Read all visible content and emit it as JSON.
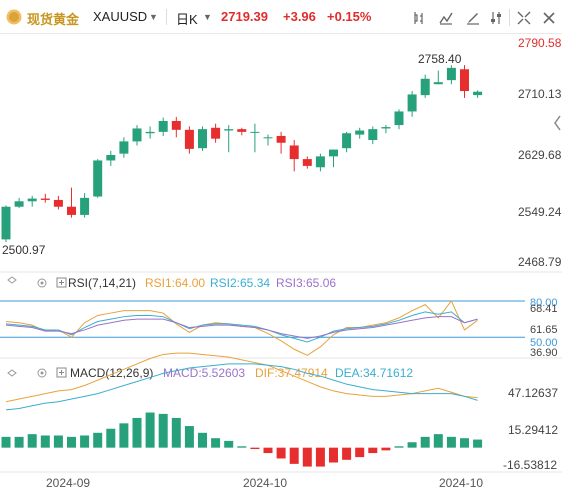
{
  "toolbar": {
    "name": "现货黄金",
    "symbol": "XAUUSD",
    "timeframe": "日K",
    "price": "2719.39",
    "change": "+3.96",
    "change_pct": "+0.15%",
    "icons": [
      "chart-style-icon",
      "indicator-icon",
      "draw-icon",
      "settings-icon",
      "fullscreen-icon",
      "close-icon"
    ]
  },
  "colors": {
    "up": "#26a17b",
    "down": "#e62e2e",
    "accent": "#c8961e",
    "ref": "#3d9ad8"
  },
  "price_axis": [
    "2790.58",
    "2710.13",
    "2629.68",
    "2549.24",
    "2468.79"
  ],
  "annotations": {
    "high": "2758.40",
    "low": "2500.97"
  },
  "rsi": {
    "title": "RSI(7,14,21)",
    "rsi1": "RSI1:64.00",
    "rsi2": "RSI2:65.34",
    "rsi3": "RSI3:65.06",
    "axis": [
      "80.00",
      "68.41",
      "61.65",
      "50.00",
      "36.90"
    ]
  },
  "macd": {
    "title": "MACD(12,26,9)",
    "macd": "MACD:5.52603",
    "dif": "DIF:37.47914",
    "dea": "DEA:34.71612",
    "axis": [
      "47.12637",
      "15.29412",
      "-16.53812"
    ]
  },
  "dates": [
    "2024-09",
    "2024-10",
    "2024-10"
  ],
  "chart_data": {
    "type": "candlestick",
    "candles": [
      {
        "o": 2502,
        "h": 2552,
        "l": 2498,
        "c": 2550
      },
      {
        "o": 2550,
        "h": 2563,
        "l": 2548,
        "c": 2558
      },
      {
        "o": 2558,
        "h": 2566,
        "l": 2550,
        "c": 2562
      },
      {
        "o": 2562,
        "h": 2569,
        "l": 2556,
        "c": 2560
      },
      {
        "o": 2560,
        "h": 2566,
        "l": 2546,
        "c": 2550
      },
      {
        "o": 2550,
        "h": 2578,
        "l": 2534,
        "c": 2538
      },
      {
        "o": 2538,
        "h": 2570,
        "l": 2534,
        "c": 2563
      },
      {
        "o": 2565,
        "h": 2620,
        "l": 2563,
        "c": 2618
      },
      {
        "o": 2618,
        "h": 2632,
        "l": 2610,
        "c": 2626
      },
      {
        "o": 2628,
        "h": 2652,
        "l": 2622,
        "c": 2646
      },
      {
        "o": 2646,
        "h": 2670,
        "l": 2640,
        "c": 2665
      },
      {
        "o": 2658,
        "h": 2668,
        "l": 2650,
        "c": 2660
      },
      {
        "o": 2660,
        "h": 2681,
        "l": 2654,
        "c": 2676
      },
      {
        "o": 2676,
        "h": 2682,
        "l": 2652,
        "c": 2663
      },
      {
        "o": 2663,
        "h": 2668,
        "l": 2628,
        "c": 2635
      },
      {
        "o": 2636,
        "h": 2668,
        "l": 2632,
        "c": 2664
      },
      {
        "o": 2666,
        "h": 2672,
        "l": 2644,
        "c": 2650
      },
      {
        "o": 2662,
        "h": 2670,
        "l": 2630,
        "c": 2664
      },
      {
        "o": 2664,
        "h": 2666,
        "l": 2655,
        "c": 2660
      },
      {
        "o": 2660,
        "h": 2672,
        "l": 2630,
        "c": 2660
      },
      {
        "o": 2652,
        "h": 2656,
        "l": 2640,
        "c": 2652
      },
      {
        "o": 2654,
        "h": 2660,
        "l": 2628,
        "c": 2644
      },
      {
        "o": 2640,
        "h": 2648,
        "l": 2602,
        "c": 2620
      },
      {
        "o": 2620,
        "h": 2624,
        "l": 2606,
        "c": 2610
      },
      {
        "o": 2608,
        "h": 2628,
        "l": 2602,
        "c": 2624
      },
      {
        "o": 2624,
        "h": 2632,
        "l": 2608,
        "c": 2634
      },
      {
        "o": 2636,
        "h": 2660,
        "l": 2630,
        "c": 2658
      },
      {
        "o": 2656,
        "h": 2666,
        "l": 2650,
        "c": 2662
      },
      {
        "o": 2648,
        "h": 2668,
        "l": 2642,
        "c": 2664
      },
      {
        "o": 2665,
        "h": 2670,
        "l": 2658,
        "c": 2667
      },
      {
        "o": 2670,
        "h": 2693,
        "l": 2664,
        "c": 2690
      },
      {
        "o": 2690,
        "h": 2720,
        "l": 2682,
        "c": 2715
      },
      {
        "o": 2714,
        "h": 2744,
        "l": 2710,
        "c": 2738
      },
      {
        "o": 2730,
        "h": 2750,
        "l": 2730,
        "c": 2733
      },
      {
        "o": 2736,
        "h": 2758,
        "l": 2730,
        "c": 2754
      },
      {
        "o": 2752,
        "h": 2758,
        "l": 2710,
        "c": 2720
      },
      {
        "o": 2714,
        "h": 2721,
        "l": 2710,
        "c": 2719
      }
    ],
    "rsi_lines": {
      "rsi1": [
        63,
        62,
        60,
        55,
        56,
        50,
        62,
        68,
        70,
        72,
        72,
        72,
        70,
        61,
        54,
        60,
        62,
        61,
        59,
        58,
        53,
        47,
        40,
        35,
        42,
        52,
        58,
        58,
        60,
        62,
        66,
        72,
        77,
        66,
        80,
        56,
        64
      ],
      "rsi2": [
        61,
        60,
        59,
        56,
        56,
        52,
        58,
        63,
        65,
        67,
        68,
        68,
        67,
        62,
        57,
        60,
        61,
        61,
        60,
        59,
        56,
        52,
        49,
        46,
        50,
        55,
        57,
        58,
        59,
        61,
        64,
        68,
        71,
        69,
        71,
        62,
        65
      ],
      "rsi3": [
        60,
        59,
        58,
        55,
        55,
        53,
        56,
        60,
        62,
        64,
        65,
        65,
        65,
        62,
        58,
        59,
        60,
        60,
        59,
        58,
        56,
        53,
        51,
        49,
        51,
        54,
        56,
        57,
        58,
        60,
        62,
        64,
        66,
        67,
        67,
        62,
        65
      ]
    },
    "macd_hist": [
      8,
      8,
      10,
      9,
      9,
      8,
      9,
      11,
      14,
      18,
      22,
      26,
      25,
      22,
      16,
      11,
      7,
      5,
      1,
      -1,
      -4,
      -8,
      -12,
      -14,
      -14,
      -11,
      -9,
      -7,
      -4,
      -2,
      1,
      4,
      8,
      10,
      8,
      7,
      6
    ],
    "dif": [
      34,
      36,
      38,
      40,
      42,
      43,
      46,
      50,
      54,
      58,
      62,
      66,
      69,
      70,
      70,
      69,
      68,
      67,
      65,
      63,
      61,
      57,
      53,
      49,
      45,
      42,
      40,
      39,
      38,
      38,
      39,
      40,
      42,
      44,
      41,
      38,
      37
    ],
    "dea": [
      28,
      29,
      31,
      33,
      34,
      36,
      38,
      40,
      43,
      46,
      49,
      52,
      55,
      57,
      59,
      60,
      61,
      62,
      62,
      62,
      61,
      60,
      58,
      55,
      53,
      50,
      47,
      45,
      43,
      42,
      41,
      40,
      40,
      40,
      40,
      38,
      35
    ],
    "rsi_ref_levels": [
      80,
      50
    ],
    "price_ylim": [
      2468.79,
      2790.58
    ],
    "rsi_ylim": [
      36.9,
      80
    ],
    "macd_ylim": [
      -16.53812,
      47.12637
    ]
  }
}
